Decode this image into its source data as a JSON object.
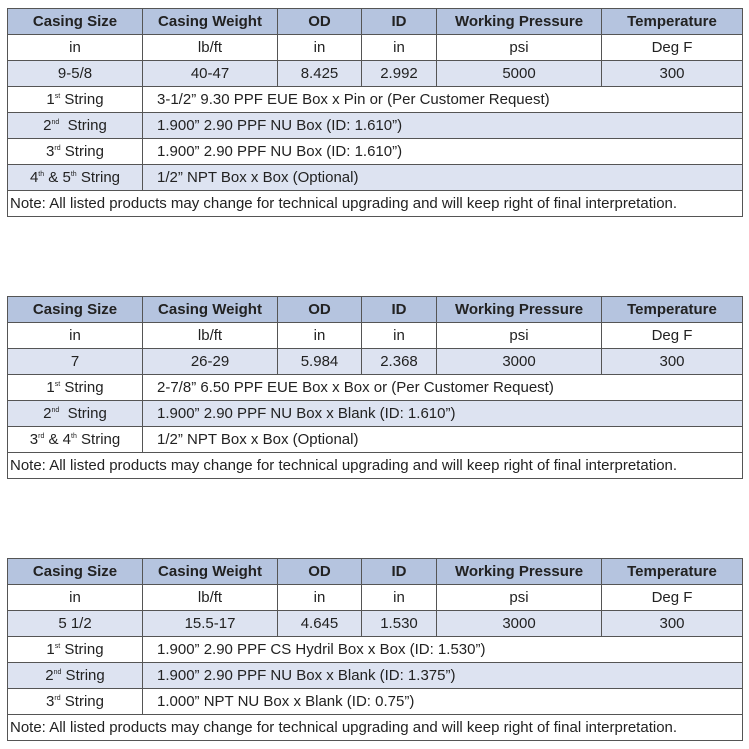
{
  "colors": {
    "header_bg": "#b5c4df",
    "band_bg": "#dde3f1",
    "border": "#555555"
  },
  "tables": [
    {
      "headers": [
        "Casing Size",
        "Casing Weight",
        "OD",
        "ID",
        "Working Pressure",
        "Temperature"
      ],
      "units": [
        "in",
        "lb/ft",
        "in",
        "in",
        "psi",
        "Deg F"
      ],
      "values": [
        "9-5/8",
        "40-47",
        "8.425",
        "2.992",
        "5000",
        "300"
      ],
      "strings": [
        {
          "label": [
            {
              "t": "1"
            },
            {
              "sup": "st"
            },
            {
              "t": " String"
            }
          ],
          "desc": "3-1/2” 9.30 PPF EUE Box x Pin or (Per Customer Request)"
        },
        {
          "label": [
            {
              "t": "2"
            },
            {
              "sup": "nd"
            },
            {
              "t": "  String"
            }
          ],
          "desc": "1.900” 2.90 PPF NU Box (ID: 1.610”)"
        },
        {
          "label": [
            {
              "t": "3"
            },
            {
              "sup": "rd"
            },
            {
              "t": " String"
            }
          ],
          "desc": "1.900” 2.90 PPF NU Box (ID: 1.610”)"
        },
        {
          "label": [
            {
              "t": "4"
            },
            {
              "sup": "th"
            },
            {
              "t": " & 5"
            },
            {
              "sup": "th"
            },
            {
              "t": " String"
            }
          ],
          "desc": "1/2” NPT Box x Box (Optional)"
        }
      ],
      "note": "Note: All listed products may change for technical upgrading and will keep right of final interpretation."
    },
    {
      "headers": [
        "Casing Size",
        "Casing Weight",
        "OD",
        "ID",
        "Working Pressure",
        "Temperature"
      ],
      "units": [
        "in",
        "lb/ft",
        "in",
        "in",
        "psi",
        "Deg F"
      ],
      "values": [
        "7",
        "26-29",
        "5.984",
        "2.368",
        "3000",
        "300"
      ],
      "strings": [
        {
          "label": [
            {
              "t": "1"
            },
            {
              "sup": "st"
            },
            {
              "t": " String"
            }
          ],
          "desc": "2-7/8” 6.50 PPF EUE Box x Box or (Per Customer Request)"
        },
        {
          "label": [
            {
              "t": "2"
            },
            {
              "sup": "nd"
            },
            {
              "t": "  String"
            }
          ],
          "desc": "1.900” 2.90 PPF NU Box x Blank (ID: 1.610”)"
        },
        {
          "label": [
            {
              "t": "3"
            },
            {
              "sup": "rd"
            },
            {
              "t": " & 4"
            },
            {
              "sup": "th"
            },
            {
              "t": " String"
            }
          ],
          "desc": "1/2” NPT Box x Box (Optional)"
        }
      ],
      "note": "Note: All listed products may change for technical upgrading and will keep right of final interpretation."
    },
    {
      "headers": [
        "Casing Size",
        "Casing Weight",
        "OD",
        "ID",
        "Working Pressure",
        "Temperature"
      ],
      "units": [
        "in",
        "lb/ft",
        "in",
        "in",
        "psi",
        "Deg F"
      ],
      "values": [
        "5 1/2",
        "15.5-17",
        "4.645",
        "1.530",
        "3000",
        "300"
      ],
      "strings": [
        {
          "label": [
            {
              "t": "1"
            },
            {
              "sup": "st"
            },
            {
              "t": " String"
            }
          ],
          "desc": "1.900” 2.90 PPF CS Hydril  Box x Box (ID: 1.530”)"
        },
        {
          "label": [
            {
              "t": "2"
            },
            {
              "sup": "nd"
            },
            {
              "t": " String"
            }
          ],
          "desc": "1.900” 2.90 PPF NU Box x Blank (ID: 1.375”)"
        },
        {
          "label": [
            {
              "t": "3"
            },
            {
              "sup": "rd"
            },
            {
              "t": " String"
            }
          ],
          "desc": "1.000” NPT NU Box x Blank (ID: 0.75”)"
        }
      ],
      "note": "Note: All listed products may change for technical upgrading and will keep right of final interpretation."
    }
  ]
}
